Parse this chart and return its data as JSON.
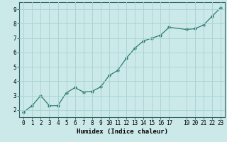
{
  "x": [
    0,
    1,
    2,
    3,
    4,
    5,
    6,
    7,
    8,
    9,
    10,
    11,
    12,
    13,
    14,
    15,
    16,
    17,
    19,
    20,
    21,
    22,
    23
  ],
  "y": [
    1.85,
    2.3,
    3.0,
    2.3,
    2.3,
    3.2,
    3.55,
    3.25,
    3.3,
    3.6,
    4.4,
    4.75,
    5.6,
    6.3,
    6.8,
    7.0,
    7.2,
    7.75,
    7.6,
    7.65,
    7.9,
    8.5,
    9.1
  ],
  "line_color": "#2e7d6e",
  "marker": "o",
  "marker_size": 2.5,
  "background_color": "#cce9e9",
  "grid_color": "#aad4d4",
  "xlabel": "Humidex (Indice chaleur)",
  "xlim": [
    -0.5,
    23.5
  ],
  "ylim": [
    1.5,
    9.5
  ],
  "yticks": [
    2,
    3,
    4,
    5,
    6,
    7,
    8,
    9
  ],
  "xticks": [
    0,
    1,
    2,
    3,
    4,
    5,
    6,
    7,
    8,
    9,
    10,
    11,
    12,
    13,
    14,
    15,
    16,
    17,
    19,
    20,
    21,
    22,
    23
  ],
  "tick_fontsize": 5.5,
  "label_fontsize": 6.5,
  "spine_color": "#336666",
  "line_width": 0.9
}
